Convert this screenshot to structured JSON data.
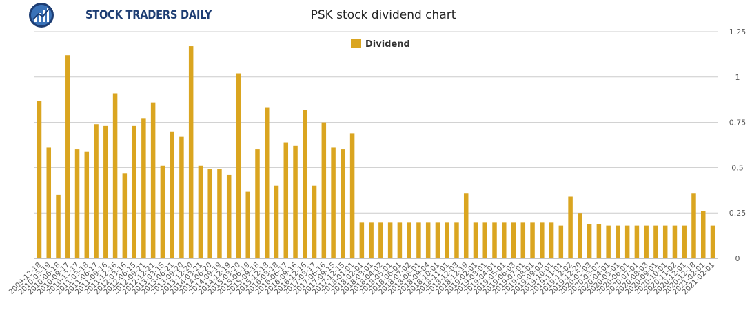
{
  "brand": {
    "name": "STOCK TRADERS DAILY",
    "logo_icon": "bar-chart-globe-icon"
  },
  "colors": {
    "bar": "#DAA520",
    "grid": "#cccccc",
    "axis_text": "#555555",
    "brand": "#1d3d73"
  },
  "chart_data": {
    "type": "bar",
    "title": "PSK stock dividend chart",
    "xlabel": "",
    "ylabel": "",
    "ylim": [
      0,
      1.25
    ],
    "yticks": [
      "0",
      "0.25",
      "0.5",
      "0.75",
      "1",
      "1.25"
    ],
    "yaxis_side": "right",
    "grid": true,
    "legend": {
      "position": "top-center"
    },
    "series": [
      {
        "name": "Dividend",
        "values": [
          0.87,
          0.61,
          0.35,
          1.12,
          0.6,
          0.59,
          0.74,
          0.73,
          0.91,
          0.47,
          0.73,
          0.77,
          0.86,
          0.51,
          0.7,
          0.67,
          1.17,
          0.51,
          0.49,
          0.49,
          0.46,
          1.02,
          0.37,
          0.6,
          0.83,
          0.4,
          0.64,
          0.62,
          0.82,
          0.4,
          0.75,
          0.61,
          0.6,
          0.69,
          0.2,
          0.2,
          0.2,
          0.2,
          0.2,
          0.2,
          0.2,
          0.2,
          0.2,
          0.2,
          0.2,
          0.36,
          0.2,
          0.2,
          0.2,
          0.2,
          0.2,
          0.2,
          0.2,
          0.2,
          0.2,
          0.18,
          0.34,
          0.25,
          0.19,
          0.19,
          0.18,
          0.18,
          0.18,
          0.18,
          0.18,
          0.18,
          0.18,
          0.18,
          0.18,
          0.36,
          0.26,
          0.18
        ]
      }
    ],
    "categories": [
      "2009-12-18",
      "2010-03-19",
      "2010-06-18",
      "2010-09-17",
      "2010-12-17",
      "2011-03-18",
      "2011-06-17",
      "2011-09-16",
      "2011-12-16",
      "2012-03-16",
      "2012-06-15",
      "2012-09-21",
      "2012-12-21",
      "2013-03-15",
      "2013-06-21",
      "2013-09-20",
      "2013-12-20",
      "2014-03-21",
      "2014-06-20",
      "2014-09-19",
      "2014-12-19",
      "2015-03-20",
      "2015-06-19",
      "2015-09-18",
      "2015-12-18",
      "2016-03-18",
      "2016-06-17",
      "2016-09-16",
      "2016-12-16",
      "2017-03-17",
      "2017-06-16",
      "2017-09-15",
      "2017-12-15",
      "2018-01-01",
      "2018-02-01",
      "2018-03-01",
      "2018-04-02",
      "2018-05-01",
      "2018-06-01",
      "2018-07-02",
      "2018-08-01",
      "2018-09-04",
      "2018-10-01",
      "2018-11-01",
      "2018-12-03",
      "2018-12-19",
      "2019-02-01",
      "2019-03-01",
      "2019-04-01",
      "2019-05-01",
      "2019-06-03",
      "2019-07-01",
      "2019-08-01",
      "2019-09-03",
      "2019-10-01",
      "2019-11-01",
      "2019-12-02",
      "2019-12-20",
      "2020-02-03",
      "2020-03-02",
      "2020-04-01",
      "2020-05-01",
      "2020-06-01",
      "2020-07-01",
      "2020-08-03",
      "2020-09-01",
      "2020-10-01",
      "2020-11-02",
      "2020-12-01",
      "2020-12-18",
      "2021-02-01",
      "2021-02-01"
    ]
  }
}
